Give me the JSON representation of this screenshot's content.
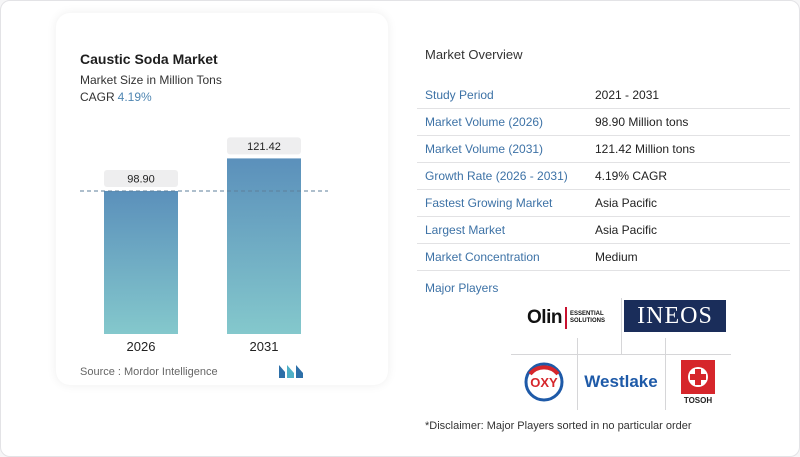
{
  "card": {
    "title": "Caustic Soda Market",
    "subtitle": "Market Size in Million Tons",
    "cagr_label": "CAGR",
    "cagr_value": "4.19%",
    "source": "Source :  Mordor Intelligence"
  },
  "chart_data": {
    "type": "bar",
    "categories": [
      "2026",
      "2031"
    ],
    "values": [
      98.9,
      121.42
    ],
    "value_labels": [
      "98.90",
      "121.42"
    ],
    "reference_line": 98.9,
    "ylim": [
      0,
      130
    ],
    "grid": false,
    "legend": "none",
    "colors": {
      "bar_top": "#5b90bb",
      "bar_bottom": "#84c8cc",
      "label_bg": "#eeeeef",
      "ref_line": "#5e7f9b"
    }
  },
  "overview": {
    "title": "Market Overview",
    "rows": [
      {
        "key": "Study Period",
        "value": "2021 - 2031"
      },
      {
        "key": "Market Volume (2026)",
        "value": "98.90 Million tons"
      },
      {
        "key": "Market Volume (2031)",
        "value": "121.42 Million tons"
      },
      {
        "key": "Growth Rate (2026 - 2031)",
        "value": "4.19% CAGR"
      },
      {
        "key": "Fastest Growing Market",
        "value": "Asia Pacific"
      },
      {
        "key": "Largest Market",
        "value": "Asia Pacific"
      },
      {
        "key": "Market Concentration",
        "value": "Medium"
      }
    ],
    "major_players_label": "Major Players",
    "players": {
      "olin": "Olin",
      "olin_sub1": "ESSENTIAL",
      "olin_sub2": "SOLUTIONS",
      "ineos": "INEOS",
      "oxy": "OXY",
      "westlake": "Westlake",
      "tosoh": "TOSOH"
    },
    "disclaimer": "*Disclaimer: Major Players sorted in no particular order"
  }
}
